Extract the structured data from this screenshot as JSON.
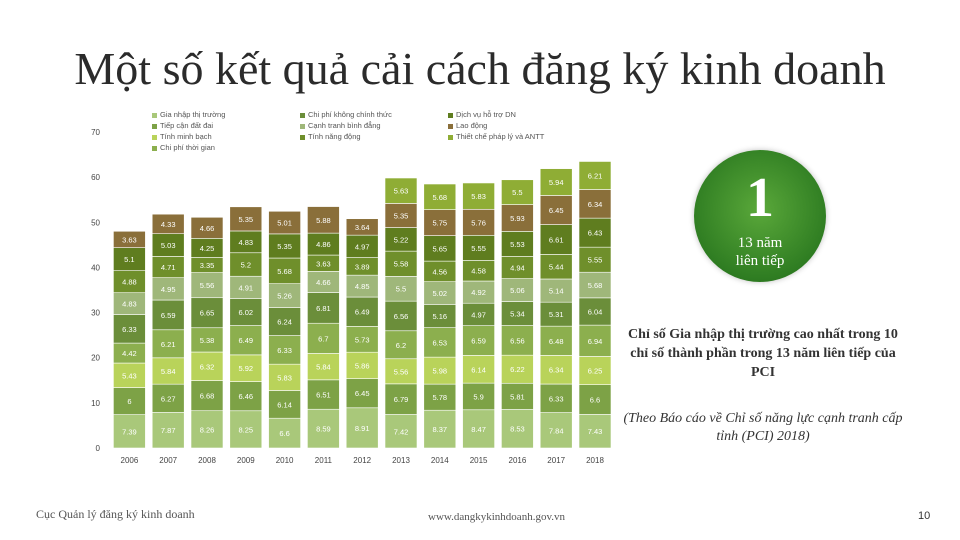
{
  "title": "Một số kết quả cải cách đăng ký kinh doanh",
  "badge": {
    "number": "1",
    "caption_line1": "13 năm",
    "caption_line2": "liên tiếp"
  },
  "summary": "Chỉ số Gia nhập thị trường cao nhất trong 10 chỉ số thành phần trong 13 năm liên tiếp của PCI",
  "source_note": "(Theo Báo cáo về Chỉ số năng lực cạnh tranh cấp tỉnh (PCI) 2018)",
  "footer": {
    "agency": "Cục Quản lý đăng ký kinh doanh",
    "url": "www.dangkykinhdoanh.gov.vn",
    "page": "10"
  },
  "colors": {
    "accent_green": "#2f7d22",
    "title_text": "#2b2b2b"
  },
  "chart_data": {
    "type": "bar",
    "stacked": true,
    "categories": [
      "2006",
      "2007",
      "2008",
      "2009",
      "2010",
      "2011",
      "2012",
      "2013",
      "2014",
      "2015",
      "2016",
      "2017",
      "2018"
    ],
    "ylim": [
      0,
      70
    ],
    "yticks": [
      0,
      10,
      20,
      30,
      40,
      50,
      60,
      70
    ],
    "grid": false,
    "legend_position": "top",
    "series": [
      {
        "name": "Gia nhập thị trường",
        "color": "#a9c87a",
        "values": [
          7.39,
          7.87,
          8.26,
          8.25,
          6.6,
          8.59,
          8.91,
          7.42,
          8.37,
          8.47,
          8.53,
          7.84,
          7.43
        ]
      },
      {
        "name": "Tiếp cận đất đai",
        "color": "#7da246",
        "values": [
          6,
          6.27,
          6.68,
          6.46,
          6.14,
          6.51,
          6.45,
          6.79,
          5.78,
          5.9,
          5.81,
          6.33,
          6.6
        ]
      },
      {
        "name": "Tính minh bạch",
        "color": "#b9d35a",
        "values": [
          5.43,
          5.84,
          6.32,
          5.92,
          5.83,
          5.84,
          5.86,
          5.56,
          5.98,
          6.14,
          6.22,
          6.34,
          6.25
        ]
      },
      {
        "name": "Chi phí thời gian",
        "color": "#8caf4e",
        "values": [
          4.42,
          6.21,
          5.38,
          6.49,
          6.33,
          6.7,
          5.73,
          6.2,
          6.53,
          6.59,
          6.56,
          6.48,
          6.94
        ]
      },
      {
        "name": "Chi phí không chính thức",
        "color": "#6b8e3a",
        "values": [
          6.33,
          6.59,
          6.65,
          6.02,
          6.24,
          6.81,
          6.49,
          6.56,
          5.16,
          4.97,
          5.34,
          5.31,
          6.04
        ]
      },
      {
        "name": "Cạnh tranh bình đẳng",
        "color": "#9fb77a",
        "values": [
          4.83,
          4.95,
          5.56,
          4.91,
          5.26,
          4.66,
          4.85,
          5.5,
          5.02,
          4.92,
          5.06,
          5.14,
          5.68
        ]
      },
      {
        "name": "Tính năng động",
        "color": "#6f8f2b",
        "values": [
          4.88,
          4.71,
          3.35,
          5.2,
          5.68,
          3.63,
          3.89,
          5.58,
          4.56,
          4.58,
          4.94,
          5.44,
          5.55
        ]
      },
      {
        "name": "Dịch vụ hỗ trợ DN",
        "color": "#5f7d1f",
        "values": [
          5.1,
          5.03,
          4.25,
          4.83,
          5.35,
          4.86,
          4.97,
          5.22,
          5.65,
          5.55,
          5.53,
          6.61,
          6.43
        ]
      },
      {
        "name": "Lao động",
        "color": "#8a6f3a",
        "values": [
          3.63,
          4.33,
          4.66,
          5.35,
          5.01,
          5.88,
          3.64,
          5.35,
          5.75,
          5.76,
          5.93,
          6.45,
          6.34
        ]
      },
      {
        "name": "Thiết chế pháp lý và ANTT",
        "color": "#8fad35",
        "values": [
          null,
          null,
          null,
          null,
          null,
          null,
          null,
          5.63,
          5.68,
          5.83,
          5.5,
          5.94,
          6.21
        ]
      }
    ]
  }
}
